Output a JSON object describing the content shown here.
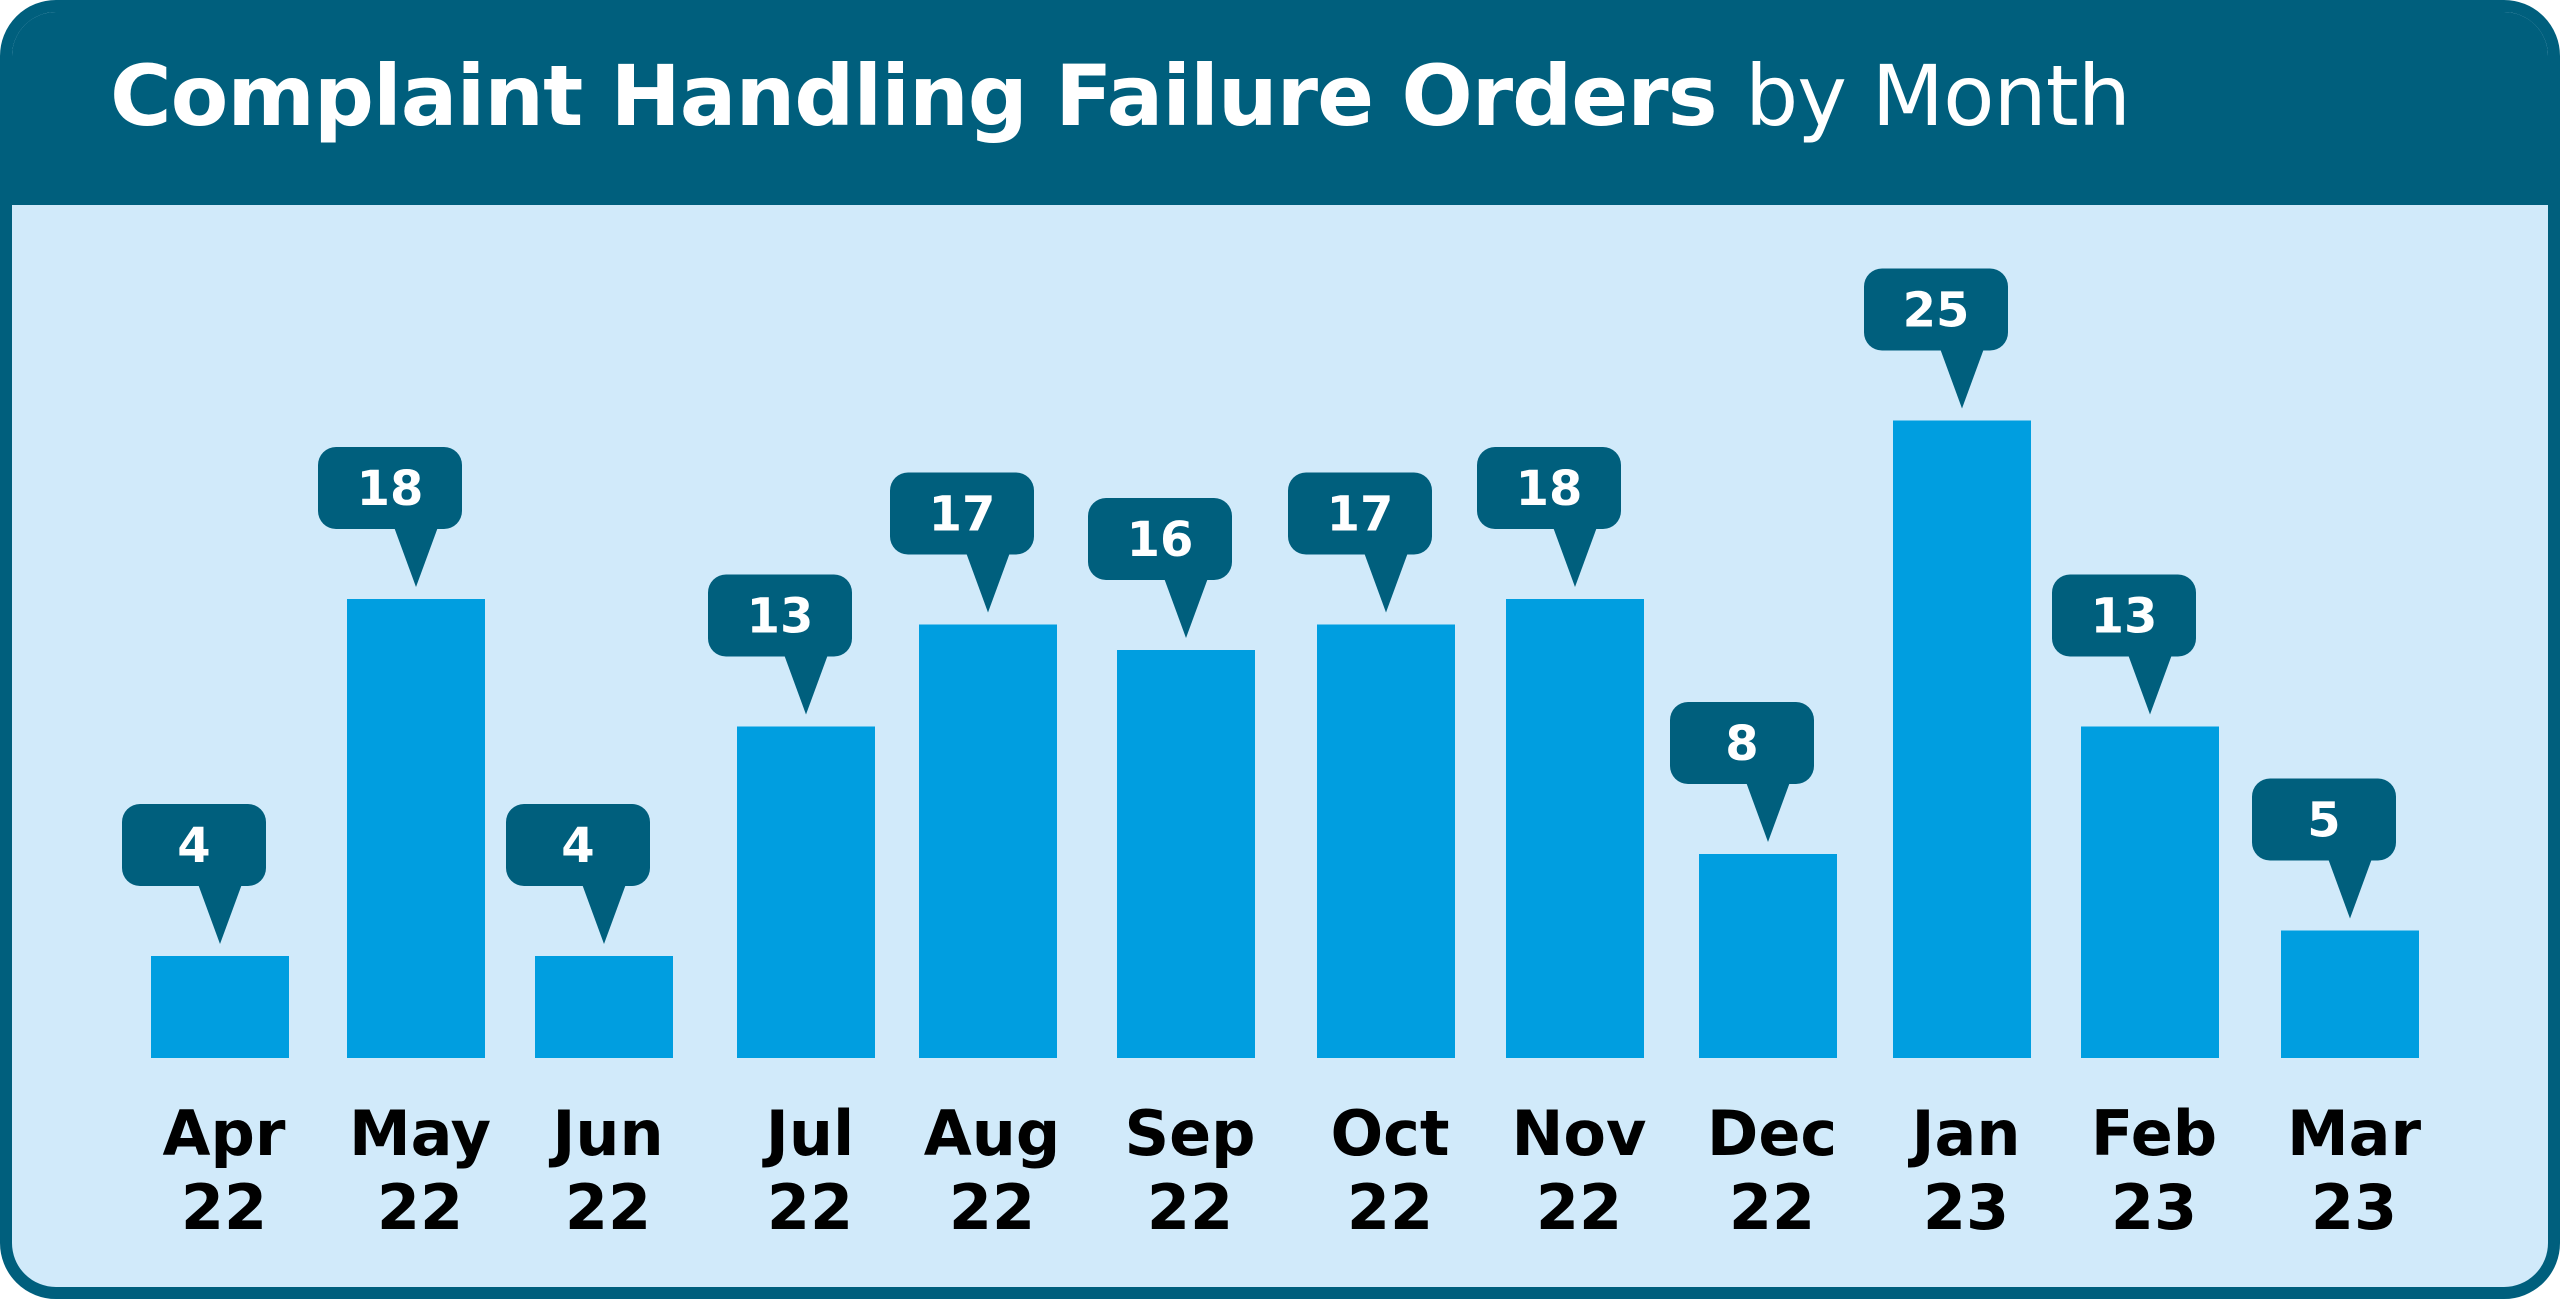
{
  "title": {
    "bold": "Complaint Handling Failure Orders",
    "regular": "by Month"
  },
  "colors": {
    "header": "#005f7d",
    "background": "#d1eafa",
    "bar": "#009ee0",
    "callout": "#005f7d",
    "axis_text": "#000000",
    "callout_text": "#ffffff"
  },
  "chart_data": {
    "type": "bar",
    "title": "Complaint Handling Failure Orders by Month",
    "categories": [
      [
        "Apr",
        "22"
      ],
      [
        "May",
        "22"
      ],
      [
        "Jun",
        "22"
      ],
      [
        "Jul",
        "22"
      ],
      [
        "Aug",
        "22"
      ],
      [
        "Sep",
        "22"
      ],
      [
        "Oct",
        "22"
      ],
      [
        "Nov",
        "22"
      ],
      [
        "Dec",
        "22"
      ],
      [
        "Jan",
        "23"
      ],
      [
        "Feb",
        "23"
      ],
      [
        "Mar",
        "23"
      ]
    ],
    "values": [
      4,
      18,
      4,
      13,
      17,
      16,
      17,
      18,
      8,
      25,
      13,
      5
    ],
    "data_labels": true,
    "grid": false,
    "y_axis_visible": false
  }
}
